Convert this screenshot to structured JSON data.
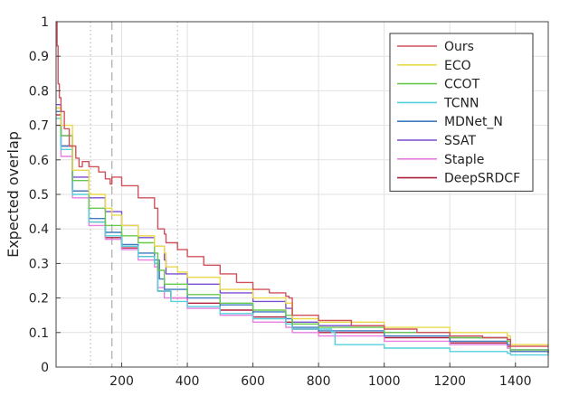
{
  "chart_data": {
    "type": "line",
    "title": "",
    "xlabel": "",
    "ylabel": "Expected overlap",
    "xlim": [
      0,
      1500
    ],
    "ylim": [
      0,
      1
    ],
    "xticks": [
      200,
      400,
      600,
      800,
      1000,
      1200,
      1400
    ],
    "yticks": [
      0,
      0.1,
      0.2,
      0.3,
      0.4,
      0.5,
      0.6,
      0.7,
      0.8,
      0.9,
      1
    ],
    "grid": true,
    "legend_position": "top-right",
    "vertical_markers": [
      {
        "x": 105,
        "style": "dotted"
      },
      {
        "x": 170,
        "style": "dashed"
      },
      {
        "x": 370,
        "style": "dotted"
      }
    ],
    "series": [
      {
        "name": "Ours",
        "color": "#d0505c",
        "points": [
          [
            0,
            1.0
          ],
          [
            3,
            0.93
          ],
          [
            6,
            0.82
          ],
          [
            10,
            0.78
          ],
          [
            15,
            0.74
          ],
          [
            25,
            0.69
          ],
          [
            40,
            0.64
          ],
          [
            60,
            0.605
          ],
          [
            70,
            0.58
          ],
          [
            80,
            0.595
          ],
          [
            100,
            0.58
          ],
          [
            130,
            0.565
          ],
          [
            150,
            0.545
          ],
          [
            165,
            0.53
          ],
          [
            170,
            0.55
          ],
          [
            200,
            0.525
          ],
          [
            250,
            0.49
          ],
          [
            300,
            0.46
          ],
          [
            310,
            0.4
          ],
          [
            330,
            0.385
          ],
          [
            335,
            0.36
          ],
          [
            370,
            0.34
          ],
          [
            400,
            0.32
          ],
          [
            450,
            0.295
          ],
          [
            500,
            0.27
          ],
          [
            550,
            0.245
          ],
          [
            600,
            0.225
          ],
          [
            650,
            0.215
          ],
          [
            700,
            0.205
          ],
          [
            710,
            0.2
          ],
          [
            720,
            0.15
          ],
          [
            800,
            0.135
          ],
          [
            900,
            0.12
          ],
          [
            1000,
            0.11
          ],
          [
            1100,
            0.1
          ],
          [
            1200,
            0.09
          ],
          [
            1300,
            0.085
          ],
          [
            1375,
            0.08
          ],
          [
            1385,
            0.06
          ],
          [
            1500,
            0.058
          ]
        ]
      },
      {
        "name": "ECO",
        "color": "#ead94a",
        "points": [
          [
            0,
            0.75
          ],
          [
            15,
            0.7
          ],
          [
            50,
            0.57
          ],
          [
            100,
            0.5
          ],
          [
            150,
            0.46
          ],
          [
            170,
            0.44
          ],
          [
            200,
            0.41
          ],
          [
            250,
            0.38
          ],
          [
            300,
            0.35
          ],
          [
            330,
            0.33
          ],
          [
            335,
            0.29
          ],
          [
            370,
            0.275
          ],
          [
            400,
            0.26
          ],
          [
            500,
            0.225
          ],
          [
            600,
            0.2
          ],
          [
            700,
            0.185
          ],
          [
            720,
            0.14
          ],
          [
            800,
            0.13
          ],
          [
            1000,
            0.115
          ],
          [
            1200,
            0.1
          ],
          [
            1375,
            0.09
          ],
          [
            1385,
            0.065
          ],
          [
            1500,
            0.06
          ]
        ]
      },
      {
        "name": "CCOT",
        "color": "#69c94d",
        "points": [
          [
            0,
            0.75
          ],
          [
            15,
            0.67
          ],
          [
            50,
            0.54
          ],
          [
            100,
            0.46
          ],
          [
            150,
            0.41
          ],
          [
            200,
            0.38
          ],
          [
            250,
            0.36
          ],
          [
            300,
            0.33
          ],
          [
            310,
            0.28
          ],
          [
            330,
            0.24
          ],
          [
            400,
            0.21
          ],
          [
            500,
            0.185
          ],
          [
            600,
            0.165
          ],
          [
            700,
            0.15
          ],
          [
            720,
            0.125
          ],
          [
            800,
            0.115
          ],
          [
            1000,
            0.1
          ],
          [
            1200,
            0.085
          ],
          [
            1375,
            0.075
          ],
          [
            1385,
            0.05
          ],
          [
            1500,
            0.045
          ]
        ]
      },
      {
        "name": "TCNN",
        "color": "#55d0dc",
        "points": [
          [
            0,
            0.72
          ],
          [
            15,
            0.63
          ],
          [
            50,
            0.5
          ],
          [
            100,
            0.42
          ],
          [
            150,
            0.38
          ],
          [
            200,
            0.35
          ],
          [
            250,
            0.32
          ],
          [
            300,
            0.3
          ],
          [
            310,
            0.22
          ],
          [
            350,
            0.19
          ],
          [
            400,
            0.175
          ],
          [
            500,
            0.155
          ],
          [
            600,
            0.14
          ],
          [
            700,
            0.125
          ],
          [
            720,
            0.11
          ],
          [
            840,
            0.1
          ],
          [
            850,
            0.065
          ],
          [
            1000,
            0.055
          ],
          [
            1200,
            0.045
          ],
          [
            1375,
            0.04
          ],
          [
            1385,
            0.035
          ],
          [
            1500,
            0.033
          ]
        ]
      },
      {
        "name": "MDNet_N",
        "color": "#3f7cc0",
        "points": [
          [
            0,
            0.74
          ],
          [
            15,
            0.64
          ],
          [
            50,
            0.51
          ],
          [
            100,
            0.43
          ],
          [
            150,
            0.39
          ],
          [
            200,
            0.355
          ],
          [
            250,
            0.33
          ],
          [
            300,
            0.31
          ],
          [
            315,
            0.255
          ],
          [
            330,
            0.225
          ],
          [
            400,
            0.2
          ],
          [
            500,
            0.18
          ],
          [
            600,
            0.16
          ],
          [
            700,
            0.14
          ],
          [
            720,
            0.115
          ],
          [
            800,
            0.105
          ],
          [
            1000,
            0.09
          ],
          [
            1200,
            0.075
          ],
          [
            1375,
            0.065
          ],
          [
            1385,
            0.045
          ],
          [
            1500,
            0.04
          ]
        ]
      },
      {
        "name": "SSAT",
        "color": "#7a4fd0",
        "points": [
          [
            0,
            0.76
          ],
          [
            15,
            0.67
          ],
          [
            50,
            0.55
          ],
          [
            100,
            0.49
          ],
          [
            150,
            0.45
          ],
          [
            200,
            0.41
          ],
          [
            250,
            0.375
          ],
          [
            300,
            0.35
          ],
          [
            330,
            0.31
          ],
          [
            335,
            0.27
          ],
          [
            400,
            0.24
          ],
          [
            500,
            0.215
          ],
          [
            600,
            0.19
          ],
          [
            700,
            0.17
          ],
          [
            720,
            0.13
          ],
          [
            800,
            0.12
          ],
          [
            1000,
            0.1
          ],
          [
            1200,
            0.085
          ],
          [
            1375,
            0.075
          ],
          [
            1385,
            0.05
          ],
          [
            1500,
            0.045
          ]
        ]
      },
      {
        "name": "Staple",
        "color": "#e87fe0",
        "points": [
          [
            0,
            0.7
          ],
          [
            15,
            0.61
          ],
          [
            50,
            0.49
          ],
          [
            100,
            0.41
          ],
          [
            150,
            0.37
          ],
          [
            200,
            0.34
          ],
          [
            250,
            0.31
          ],
          [
            300,
            0.29
          ],
          [
            310,
            0.23
          ],
          [
            330,
            0.2
          ],
          [
            400,
            0.17
          ],
          [
            500,
            0.15
          ],
          [
            600,
            0.13
          ],
          [
            700,
            0.115
          ],
          [
            720,
            0.1
          ],
          [
            800,
            0.09
          ],
          [
            1000,
            0.075
          ],
          [
            1200,
            0.065
          ],
          [
            1375,
            0.055
          ],
          [
            1385,
            0.045
          ],
          [
            1500,
            0.04
          ]
        ]
      },
      {
        "name": "DeepSRDCF",
        "color": "#b0203f",
        "points": [
          [
            0,
            0.73
          ],
          [
            15,
            0.64
          ],
          [
            50,
            0.51
          ],
          [
            100,
            0.42
          ],
          [
            150,
            0.375
          ],
          [
            200,
            0.345
          ],
          [
            250,
            0.32
          ],
          [
            300,
            0.3
          ],
          [
            310,
            0.22
          ],
          [
            350,
            0.2
          ],
          [
            400,
            0.185
          ],
          [
            500,
            0.165
          ],
          [
            600,
            0.145
          ],
          [
            700,
            0.13
          ],
          [
            720,
            0.11
          ],
          [
            800,
            0.1
          ],
          [
            1000,
            0.085
          ],
          [
            1200,
            0.07
          ],
          [
            1375,
            0.06
          ],
          [
            1385,
            0.045
          ],
          [
            1500,
            0.04
          ]
        ]
      }
    ]
  }
}
